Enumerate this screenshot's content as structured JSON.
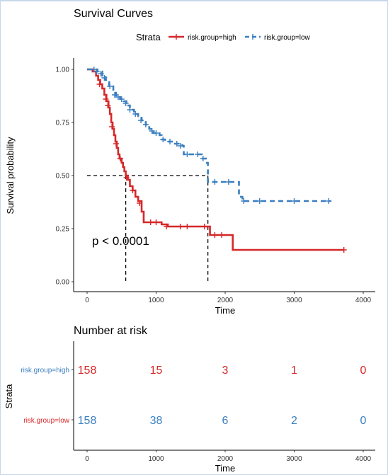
{
  "chart_data": [
    {
      "type": "line",
      "title": "Survival Curves",
      "xlabel": "Time",
      "ylabel": "Survival probability",
      "xlim": [
        0,
        4000
      ],
      "ylim": [
        0,
        1
      ],
      "xticks": [
        0,
        1000,
        2000,
        3000,
        4000
      ],
      "yticks": [
        0.0,
        0.25,
        0.5,
        0.75,
        1.0
      ],
      "ytick_labels": [
        "0.00",
        "0.25",
        "0.50",
        "0.75",
        "1.00"
      ],
      "legend": {
        "title": "Strata",
        "position": "top"
      },
      "annotation": "p < 0.0001",
      "median_line": {
        "y": 0.5,
        "x_values": [
          560,
          1750
        ]
      },
      "series": [
        {
          "name": "risk.group=high",
          "color": "#d62728",
          "dash": "solid",
          "steps": [
            [
              0,
              1.0
            ],
            [
              80,
              0.99
            ],
            [
              130,
              0.97
            ],
            [
              160,
              0.95
            ],
            [
              190,
              0.93
            ],
            [
              220,
              0.91
            ],
            [
              250,
              0.88
            ],
            [
              280,
              0.85
            ],
            [
              310,
              0.82
            ],
            [
              330,
              0.79
            ],
            [
              350,
              0.75
            ],
            [
              370,
              0.72
            ],
            [
              390,
              0.69
            ],
            [
              410,
              0.66
            ],
            [
              430,
              0.63
            ],
            [
              450,
              0.6
            ],
            [
              470,
              0.58
            ],
            [
              500,
              0.56
            ],
            [
              520,
              0.54
            ],
            [
              540,
              0.52
            ],
            [
              560,
              0.5
            ],
            [
              590,
              0.48
            ],
            [
              620,
              0.45
            ],
            [
              660,
              0.43
            ],
            [
              700,
              0.4
            ],
            [
              740,
              0.38
            ],
            [
              790,
              0.33
            ],
            [
              820,
              0.28
            ],
            [
              1000,
              0.28
            ],
            [
              1080,
              0.27
            ],
            [
              1170,
              0.26
            ],
            [
              1750,
              0.26
            ],
            [
              1780,
              0.22
            ],
            [
              2100,
              0.22
            ],
            [
              2110,
              0.15
            ],
            [
              3720,
              0.15
            ]
          ],
          "censor": [
            [
              180,
              0.93
            ],
            [
              270,
              0.86
            ],
            [
              300,
              0.83
            ],
            [
              360,
              0.73
            ],
            [
              420,
              0.65
            ],
            [
              480,
              0.58
            ],
            [
              570,
              0.49
            ],
            [
              660,
              0.43
            ],
            [
              760,
              0.37
            ],
            [
              920,
              0.28
            ],
            [
              1000,
              0.28
            ],
            [
              1150,
              0.26
            ],
            [
              1350,
              0.26
            ],
            [
              1450,
              0.26
            ],
            [
              1700,
              0.26
            ],
            [
              1850,
              0.22
            ],
            [
              1950,
              0.22
            ],
            [
              3720,
              0.15
            ]
          ]
        },
        {
          "name": "risk.group=low",
          "color": "#3a7fc0",
          "dash": "dashed",
          "steps": [
            [
              0,
              1.0
            ],
            [
              150,
              0.99
            ],
            [
              220,
              0.97
            ],
            [
              270,
              0.95
            ],
            [
              320,
              0.92
            ],
            [
              380,
              0.89
            ],
            [
              420,
              0.87
            ],
            [
              480,
              0.86
            ],
            [
              530,
              0.85
            ],
            [
              570,
              0.83
            ],
            [
              620,
              0.81
            ],
            [
              680,
              0.79
            ],
            [
              740,
              0.78
            ],
            [
              790,
              0.76
            ],
            [
              850,
              0.74
            ],
            [
              900,
              0.72
            ],
            [
              960,
              0.7
            ],
            [
              1050,
              0.69
            ],
            [
              1080,
              0.67
            ],
            [
              1130,
              0.66
            ],
            [
              1250,
              0.65
            ],
            [
              1380,
              0.64
            ],
            [
              1400,
              0.6
            ],
            [
              1650,
              0.6
            ],
            [
              1660,
              0.58
            ],
            [
              1720,
              0.56
            ],
            [
              1750,
              0.47
            ],
            [
              2190,
              0.47
            ],
            [
              2200,
              0.4
            ],
            [
              2250,
              0.38
            ],
            [
              3530,
              0.38
            ]
          ],
          "censor": [
            [
              100,
              1.0
            ],
            [
              140,
              0.99
            ],
            [
              200,
              0.98
            ],
            [
              250,
              0.96
            ],
            [
              330,
              0.92
            ],
            [
              400,
              0.88
            ],
            [
              450,
              0.87
            ],
            [
              500,
              0.86
            ],
            [
              560,
              0.84
            ],
            [
              620,
              0.81
            ],
            [
              700,
              0.79
            ],
            [
              780,
              0.76
            ],
            [
              850,
              0.74
            ],
            [
              940,
              0.71
            ],
            [
              1000,
              0.7
            ],
            [
              1100,
              0.67
            ],
            [
              1200,
              0.66
            ],
            [
              1300,
              0.65
            ],
            [
              1350,
              0.64
            ],
            [
              1450,
              0.6
            ],
            [
              1600,
              0.6
            ],
            [
              1680,
              0.58
            ],
            [
              1850,
              0.47
            ],
            [
              2050,
              0.47
            ],
            [
              2270,
              0.38
            ],
            [
              2500,
              0.38
            ],
            [
              3000,
              0.38
            ],
            [
              3500,
              0.38
            ]
          ]
        }
      ]
    },
    {
      "type": "table",
      "title": "Number at risk",
      "xlabel": "Time",
      "ylabel": "Strata",
      "xlim": [
        0,
        4000
      ],
      "xticks": [
        0,
        1000,
        2000,
        3000,
        4000
      ],
      "rows": [
        {
          "label": "risk.group=high",
          "label_color": "#3a7fc0",
          "value_color": "#d62728",
          "values": [
            158,
            15,
            3,
            1,
            0
          ]
        },
        {
          "label": "risk.group=low",
          "label_color": "#d62728",
          "value_color": "#3a7fc0",
          "values": [
            158,
            38,
            6,
            2,
            0
          ]
        }
      ]
    }
  ]
}
